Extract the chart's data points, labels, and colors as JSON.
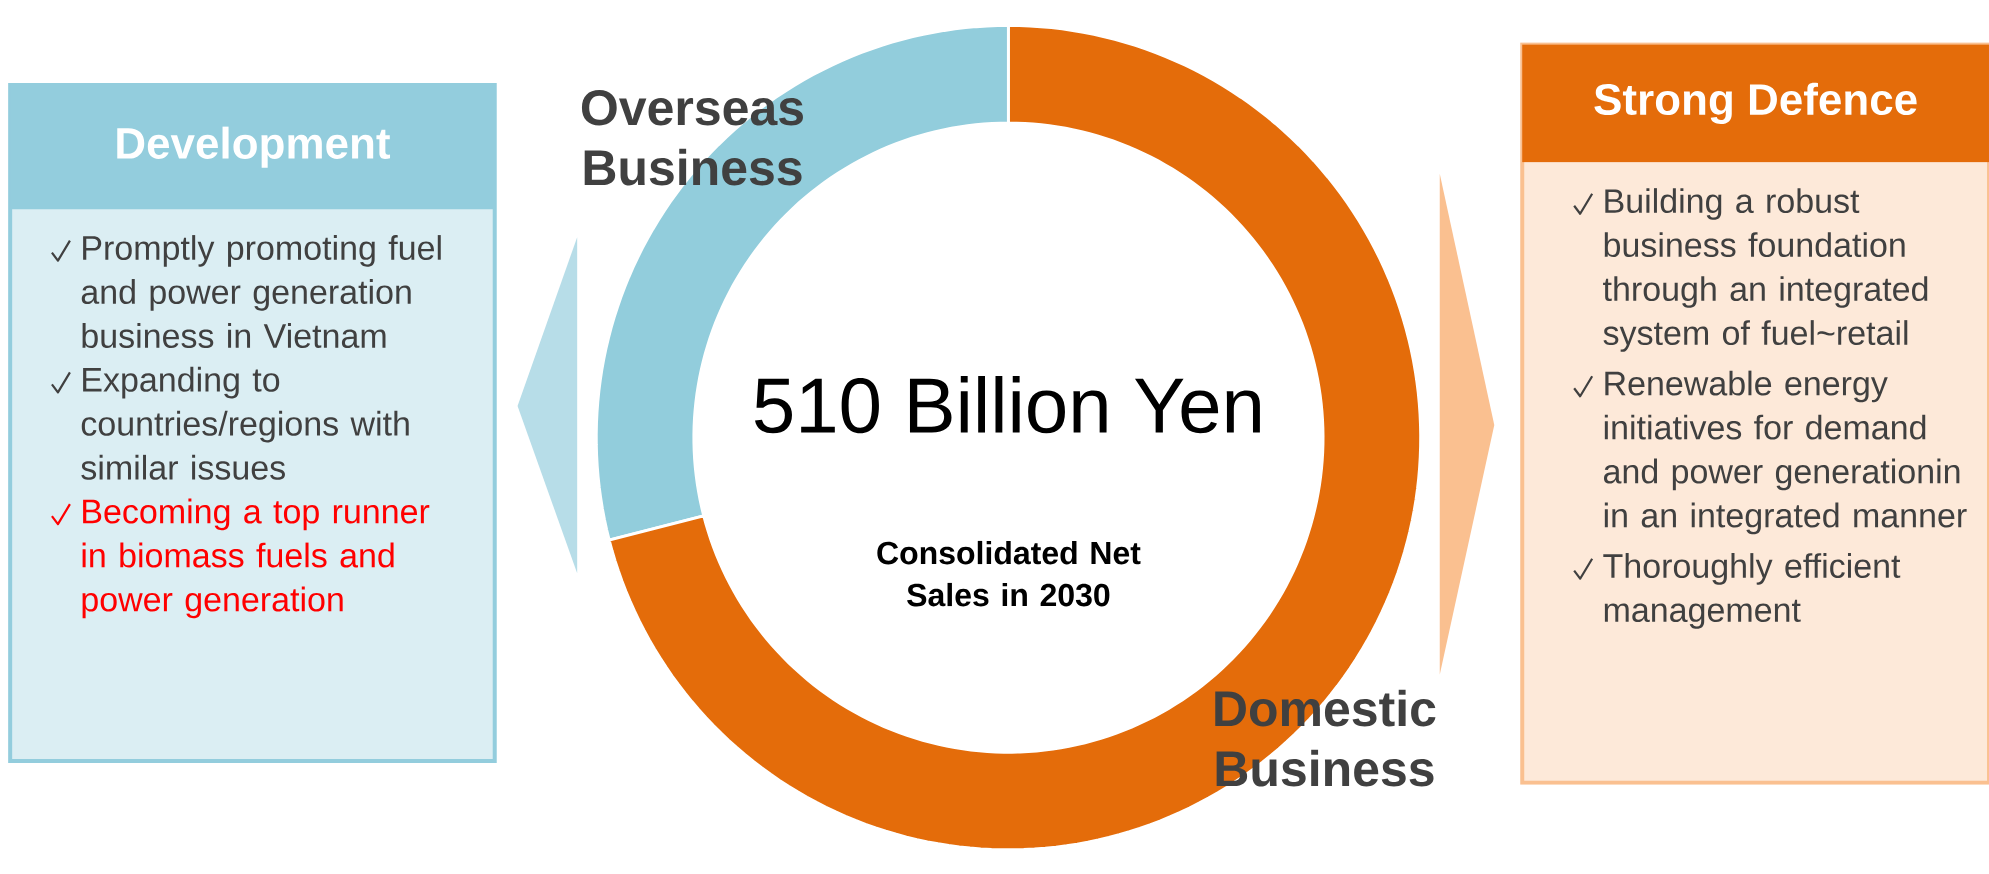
{
  "chart_data": [
    {
      "type": "other",
      "title": "Development",
      "annotations": [
        "Promptly promoting fuel and power generation business in Vietnam",
        "Expanding to countries/regions with similar issues",
        "Becoming a top runner in biomass fuels and power generation"
      ]
    },
    {
      "type": "donut",
      "categories": [
        "Overseas Business",
        "Domestic Business"
      ],
      "values": [
        29,
        71
      ],
      "colors": [
        "#92cddc",
        "#e46c0a"
      ],
      "annotations": [
        "510 Billion Yen",
        "Consolidated Net Sales in 2030"
      ]
    },
    {
      "type": "other",
      "title": "Strong Defence",
      "annotations": [
        "Building a robust business foundation through an integrated system of fuel~retail",
        "Renewable energy initiatives for demand and power generationin in an integrated manner",
        "Thoroughly efficient management"
      ]
    }
  ]
}
